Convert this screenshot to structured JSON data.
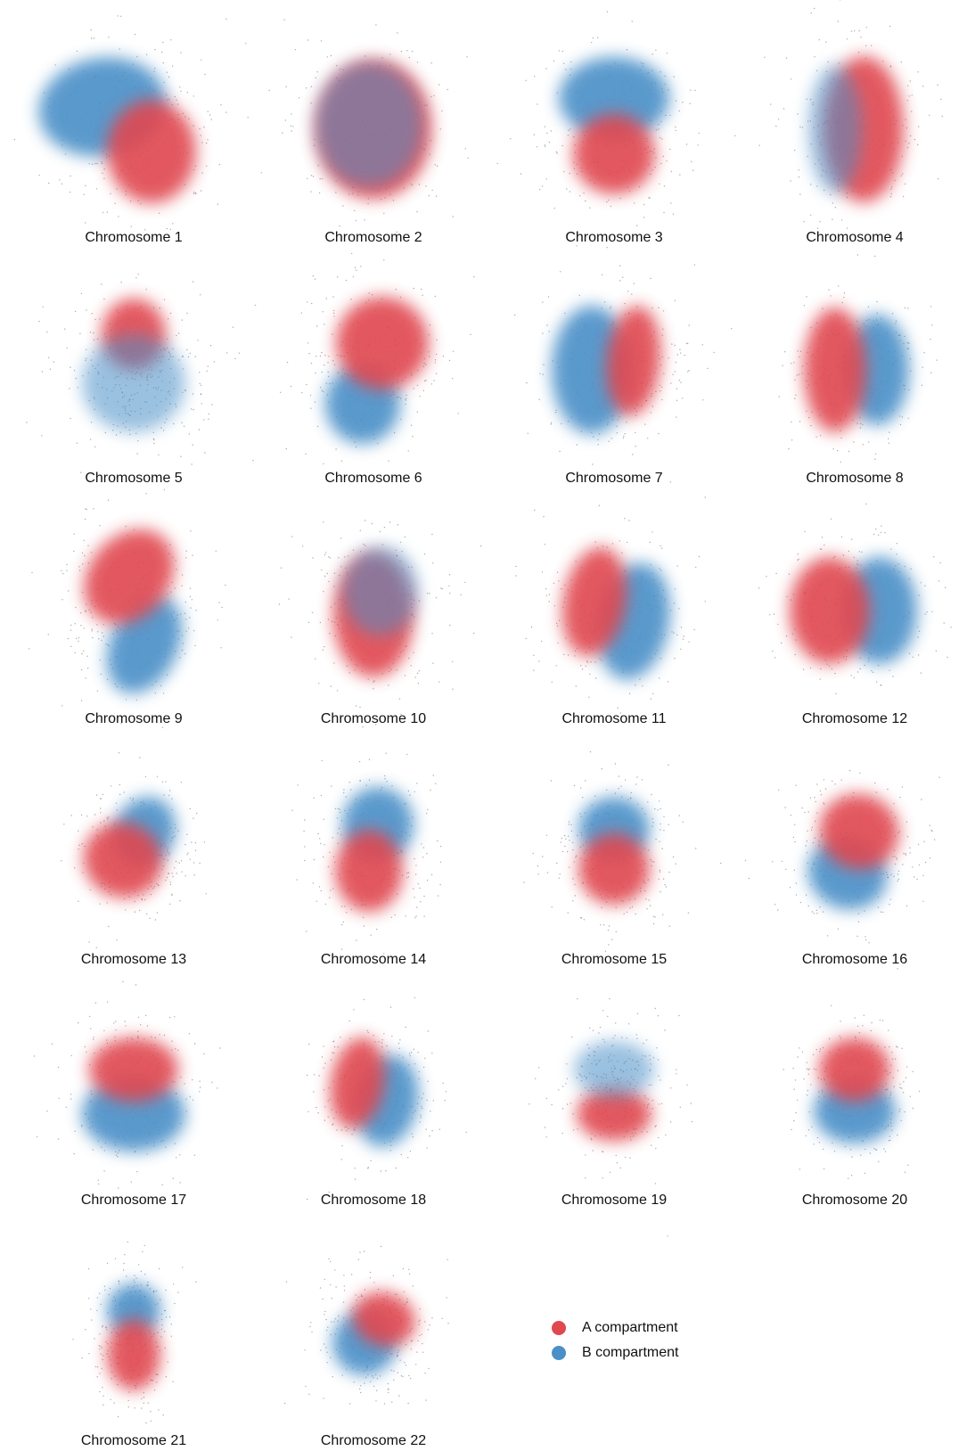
{
  "panels": [
    {
      "label": "Chromosome 1"
    },
    {
      "label": "Chromosome 2"
    },
    {
      "label": "Chromosome 3"
    },
    {
      "label": "Chromosome 4"
    },
    {
      "label": "Chromosome 5"
    },
    {
      "label": "Chromosome 6"
    },
    {
      "label": "Chromosome 7"
    },
    {
      "label": "Chromosome 8"
    },
    {
      "label": "Chromosome 9"
    },
    {
      "label": "Chromosome 10"
    },
    {
      "label": "Chromosome 11"
    },
    {
      "label": "Chromosome 12"
    },
    {
      "label": "Chromosome 13"
    },
    {
      "label": "Chromosome 14"
    },
    {
      "label": "Chromosome 15"
    },
    {
      "label": "Chromosome 16"
    },
    {
      "label": "Chromosome 17"
    },
    {
      "label": "Chromosome 18"
    },
    {
      "label": "Chromosome 19"
    },
    {
      "label": "Chromosome 20"
    },
    {
      "label": "Chromosome 21"
    },
    {
      "label": "Chromosome 22"
    }
  ],
  "legend": [
    {
      "label": "A compartment",
      "color": "#e0474f"
    },
    {
      "label": "B compartment",
      "color": "#4a8fc7"
    }
  ]
}
